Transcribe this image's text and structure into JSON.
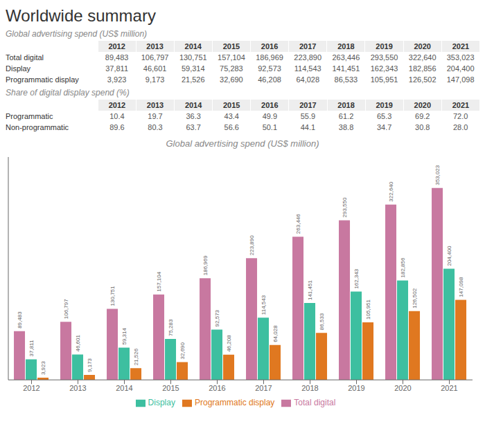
{
  "title": "Worldwide summary",
  "chart_data": [
    {
      "type": "table",
      "title": "Global advertising spend (US$ million)",
      "categories": [
        "2012",
        "2013",
        "2014",
        "2015",
        "2016",
        "2017",
        "2018",
        "2019",
        "2020",
        "2021"
      ],
      "series": [
        {
          "name": "Total digital",
          "values": [
            89483,
            106797,
            130751,
            157104,
            186969,
            223890,
            263446,
            293550,
            322640,
            353023
          ],
          "value_labels": [
            "89,483",
            "106,797",
            "130,751",
            "157,104",
            "186,969",
            "223,890",
            "263,446",
            "293,550",
            "322,640",
            "353,023"
          ]
        },
        {
          "name": "Display",
          "values": [
            37811,
            46601,
            59314,
            75283,
            92573,
            114543,
            141451,
            162343,
            182856,
            204400
          ],
          "value_labels": [
            "37,811",
            "46,601",
            "59,314",
            "75,283",
            "92,573",
            "114,543",
            "141,451",
            "162,343",
            "182,856",
            "204,400"
          ]
        },
        {
          "name": "Programmatic display",
          "values": [
            3923,
            9173,
            21526,
            32690,
            46208,
            64028,
            86533,
            105951,
            126502,
            147098
          ],
          "value_labels": [
            "3,923",
            "9,173",
            "21,526",
            "32,690",
            "46,208",
            "64,028",
            "86,533",
            "105,951",
            "126,502",
            "147,098"
          ]
        }
      ]
    },
    {
      "type": "table",
      "title": "Share of digital display spend (%)",
      "categories": [
        "2012",
        "2013",
        "2014",
        "2015",
        "2016",
        "2017",
        "2018",
        "2019",
        "2020",
        "2021"
      ],
      "series": [
        {
          "name": "Programmatic",
          "values": [
            10.4,
            19.7,
            36.3,
            43.4,
            49.9,
            55.9,
            61.2,
            65.3,
            69.2,
            72.0
          ],
          "value_labels": [
            "10.4",
            "19.7",
            "36.3",
            "43.4",
            "49.9",
            "55.9",
            "61.2",
            "65.3",
            "69.2",
            "72.0"
          ]
        },
        {
          "name": "Non-programmatic",
          "values": [
            89.6,
            80.3,
            63.7,
            56.6,
            50.1,
            44.1,
            38.8,
            34.7,
            30.8,
            28.0
          ],
          "value_labels": [
            "89.6",
            "80.3",
            "63.7",
            "56.6",
            "50.1",
            "44.1",
            "38.8",
            "34.7",
            "30.8",
            "28.0"
          ]
        }
      ]
    },
    {
      "type": "bar",
      "title": "Global advertising spend (US$ million)",
      "categories": [
        "2012",
        "2013",
        "2014",
        "2015",
        "2016",
        "2017",
        "2018",
        "2019",
        "2020",
        "2021"
      ],
      "ylim": [
        0,
        410000
      ],
      "grid": false,
      "legend": "bottom",
      "data_labels": true,
      "tick_labels": "x",
      "series": [
        {
          "name": "Total digital",
          "color": "#c878a0",
          "values": [
            89483,
            106797,
            130751,
            157104,
            186969,
            223890,
            263446,
            293550,
            322640,
            353023
          ],
          "value_labels": [
            "89,483",
            "106,797",
            "130,751",
            "157,104",
            "186,969",
            "223,890",
            "263,446",
            "293,550",
            "322,640",
            "353,023"
          ]
        },
        {
          "name": "Display",
          "color": "#3dbfa0",
          "values": [
            37811,
            46601,
            59314,
            75283,
            92573,
            114543,
            141451,
            162343,
            182856,
            204400
          ],
          "value_labels": [
            "37,811",
            "46,601",
            "59,314",
            "75,283",
            "92,573",
            "114,543",
            "141,451",
            "162,343",
            "182,856",
            "204,400"
          ]
        },
        {
          "name": "Programmatic display",
          "color": "#e07820",
          "values": [
            3923,
            9173,
            21526,
            32690,
            46208,
            64028,
            86533,
            105951,
            126502,
            147098
          ],
          "value_labels": [
            "3,923",
            "9,173",
            "21,526",
            "32,690",
            "46,208",
            "64,028",
            "86,533",
            "105,951",
            "126,502",
            "147,098"
          ]
        }
      ]
    }
  ]
}
